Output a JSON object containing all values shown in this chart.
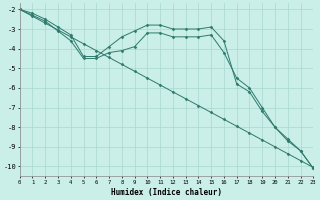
{
  "xlabel": "Humidex (Indice chaleur)",
  "bg_color": "#caeee8",
  "grid_color": "#aad8d0",
  "line_color": "#2d7a6c",
  "xlim": [
    0,
    23
  ],
  "ylim": [
    -10.5,
    -1.7
  ],
  "yticks": [
    -2,
    -3,
    -4,
    -5,
    -6,
    -7,
    -8,
    -9,
    -10
  ],
  "xticks": [
    0,
    1,
    2,
    3,
    4,
    5,
    6,
    7,
    8,
    9,
    10,
    11,
    12,
    13,
    14,
    15,
    16,
    17,
    18,
    19,
    20,
    21,
    22,
    23
  ],
  "series": [
    {
      "x": [
        0,
        1,
        2,
        3,
        4,
        5,
        6,
        7,
        8,
        9,
        10,
        11,
        12,
        13,
        14,
        15,
        16,
        17,
        18,
        19,
        20,
        21,
        22,
        23
      ],
      "y": [
        -2.0,
        -2.2,
        -2.5,
        -2.9,
        -3.3,
        -4.4,
        -4.4,
        -3.9,
        -3.4,
        -3.1,
        -2.8,
        -2.8,
        -3.0,
        -3.0,
        -3.0,
        -2.9,
        -3.6,
        -5.8,
        -6.2,
        -7.2,
        -8.0,
        -8.7,
        -9.2,
        -10.1
      ]
    },
    {
      "x": [
        0,
        1,
        2,
        3,
        4,
        5,
        6,
        7,
        8,
        9,
        10,
        11,
        12,
        13,
        14,
        15,
        16,
        17,
        18,
        19,
        20,
        21,
        22,
        23
      ],
      "y": [
        -2.0,
        -2.3,
        -2.6,
        -3.1,
        -3.6,
        -4.5,
        -4.5,
        -4.2,
        -4.1,
        -3.9,
        -3.2,
        -3.2,
        -3.4,
        -3.4,
        -3.4,
        -3.3,
        -4.2,
        -5.5,
        -6.0,
        -7.0,
        -8.0,
        -8.6,
        -9.2,
        -10.1
      ]
    },
    {
      "x": [
        0,
        1,
        2,
        3,
        4,
        5,
        6,
        7,
        8,
        9,
        10,
        11,
        12,
        13,
        14,
        15,
        16,
        17,
        18,
        19,
        20,
        21,
        22,
        23
      ],
      "y": [
        -2.0,
        -2.35,
        -2.7,
        -3.05,
        -3.4,
        -3.75,
        -4.1,
        -4.45,
        -4.8,
        -5.15,
        -5.5,
        -5.85,
        -6.2,
        -6.55,
        -6.9,
        -7.25,
        -7.6,
        -7.95,
        -8.3,
        -8.65,
        -9.0,
        -9.35,
        -9.7,
        -10.05
      ]
    }
  ]
}
